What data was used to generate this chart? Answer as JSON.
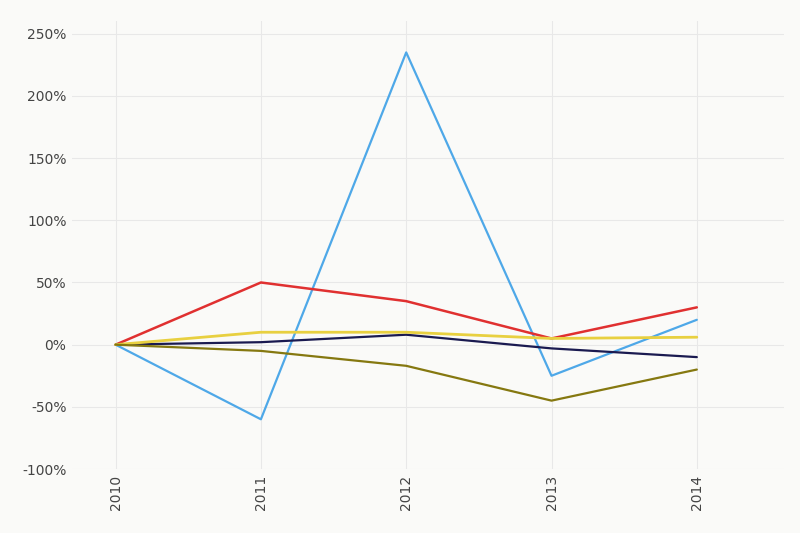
{
  "years": [
    2010,
    2011,
    2012,
    2013,
    2014
  ],
  "series": [
    {
      "name": "blue",
      "color": "#4ea8e8",
      "linewidth": 1.6,
      "values": [
        0,
        -60,
        235,
        -25,
        20
      ]
    },
    {
      "name": "red",
      "color": "#e03030",
      "linewidth": 1.8,
      "values": [
        0,
        50,
        35,
        5,
        30
      ]
    },
    {
      "name": "navy",
      "color": "#1a1a50",
      "linewidth": 1.6,
      "values": [
        0,
        2,
        8,
        -3,
        -10
      ]
    },
    {
      "name": "yellow",
      "color": "#e8d040",
      "linewidth": 2.0,
      "values": [
        0,
        10,
        10,
        5,
        6
      ]
    },
    {
      "name": "olive",
      "color": "#857810",
      "linewidth": 1.6,
      "values": [
        0,
        -5,
        -17,
        -45,
        -20
      ]
    }
  ],
  "ylim": [
    -100,
    260
  ],
  "yticks": [
    -100,
    -50,
    0,
    50,
    100,
    150,
    200,
    250
  ],
  "ytick_labels": [
    "-100%",
    "-50%",
    "0%",
    "50%",
    "100%",
    "150%",
    "200%",
    "250%"
  ],
  "xlim": [
    2009.7,
    2014.6
  ],
  "xticks": [
    2010,
    2011,
    2012,
    2013,
    2014
  ],
  "background_color": "#fafaf8",
  "plot_bg_color": "#fafaf8",
  "grid_color": "#e8e8e8",
  "grid_linewidth": 0.8
}
